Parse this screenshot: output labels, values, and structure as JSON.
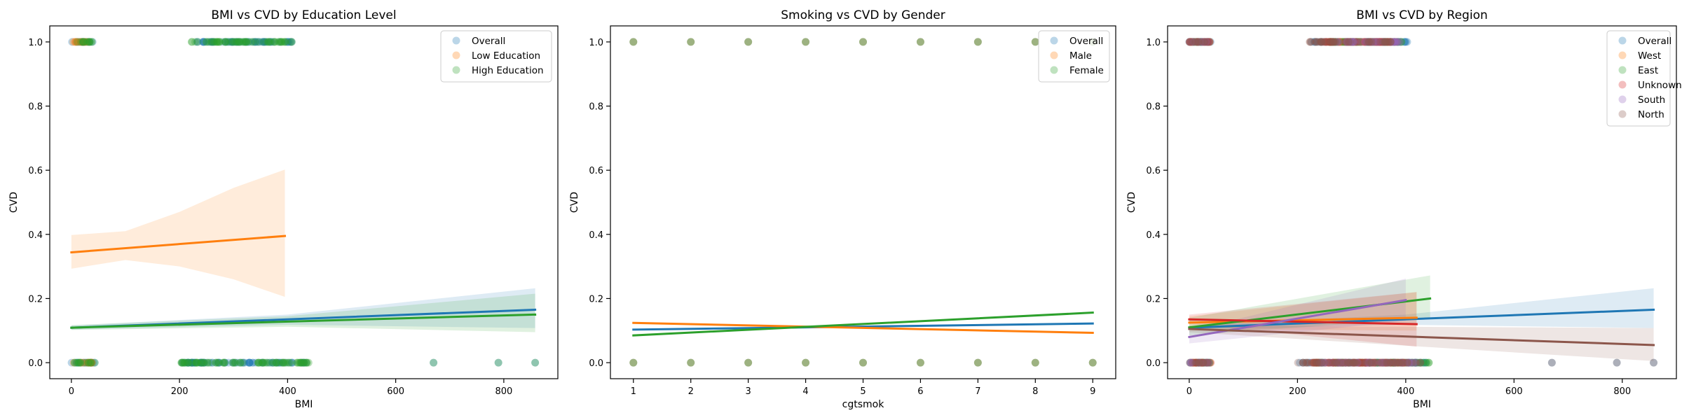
{
  "figure": {
    "background": "#ffffff"
  },
  "chart_data": [
    {
      "type": "scatter",
      "title": "BMI vs CVD by Education Level",
      "xlabel": "BMI",
      "ylabel": "CVD",
      "xlim": [
        -40,
        900
      ],
      "ylim": [
        -0.05,
        1.05
      ],
      "xticks": [
        0,
        200,
        400,
        600,
        800
      ],
      "yticks": [
        0.0,
        0.2,
        0.4,
        0.6,
        0.8,
        1.0
      ],
      "tick_labels_x": [
        "0",
        "200",
        "400",
        "600",
        "800"
      ],
      "tick_labels_y": [
        "0.0",
        "0.2",
        "0.4",
        "0.6",
        "0.8",
        "1.0"
      ],
      "grid": false,
      "legend_position": "top-right",
      "series": [
        {
          "name": "Overall",
          "color": "#1f77b4",
          "point_alpha": 0.3,
          "points_y1": [
            [
              0,
              40
            ],
            [
              230,
              410
            ]
          ],
          "points_y0": [
            [
              0,
              45
            ],
            [
              200,
              440
            ],
            [
              670
            ],
            [
              790
            ],
            [
              858
            ]
          ],
          "fit": {
            "x": [
              0,
              858
            ],
            "y": [
              0.109,
              0.165
            ]
          },
          "ci": {
            "x": [
              0,
              400,
              858
            ],
            "lower": [
              0.103,
              0.118,
              0.108
            ],
            "upper": [
              0.116,
              0.15,
              0.232
            ]
          }
        },
        {
          "name": "Low Education",
          "color": "#ff7f0e",
          "point_alpha": 0.3,
          "points_y1": [
            [
              0,
              38
            ]
          ],
          "points_y0": [
            [
              0,
              40
            ]
          ],
          "fit": {
            "x": [
              0,
              395
            ],
            "y": [
              0.344,
              0.395
            ]
          },
          "ci": {
            "x": [
              0,
              100,
              200,
              300,
              395
            ],
            "lower": [
              0.293,
              0.32,
              0.3,
              0.26,
              0.205
            ],
            "upper": [
              0.398,
              0.41,
              0.47,
              0.545,
              0.602
            ]
          }
        },
        {
          "name": "High Education",
          "color": "#2ca02c",
          "point_alpha": 0.3,
          "points_y1": [
            [
              0,
              40
            ],
            [
              220,
              410
            ]
          ],
          "points_y0": [
            [
              0,
              45
            ],
            [
              200,
              440
            ],
            [
              670
            ],
            [
              790
            ],
            [
              858
            ]
          ],
          "fit": {
            "x": [
              0,
              858
            ],
            "y": [
              0.109,
              0.15
            ]
          },
          "ci": {
            "x": [
              0,
              400,
              858
            ],
            "lower": [
              0.102,
              0.112,
              0.095
            ],
            "upper": [
              0.117,
              0.145,
              0.215
            ]
          }
        }
      ]
    },
    {
      "type": "scatter",
      "title": "Smoking vs CVD by Gender",
      "xlabel": "cgtsmok",
      "ylabel": "CVD",
      "xlim": [
        0.6,
        9.4
      ],
      "ylim": [
        -0.05,
        1.05
      ],
      "xticks": [
        1,
        2,
        3,
        4,
        5,
        6,
        7,
        8,
        9
      ],
      "yticks": [
        0.0,
        0.2,
        0.4,
        0.6,
        0.8,
        1.0
      ],
      "tick_labels_x": [
        "1",
        "2",
        "3",
        "4",
        "5",
        "6",
        "7",
        "8",
        "9"
      ],
      "tick_labels_y": [
        "0.0",
        "0.2",
        "0.4",
        "0.6",
        "0.8",
        "1.0"
      ],
      "grid": false,
      "legend_position": "top-right",
      "series": [
        {
          "name": "Overall",
          "color": "#1f77b4",
          "point_alpha": 0.3,
          "points_x": [
            1,
            2,
            3,
            4,
            5,
            6,
            7,
            8,
            9
          ],
          "fit": {
            "x": [
              1,
              9
            ],
            "y": [
              0.103,
              0.122
            ]
          }
        },
        {
          "name": "Male",
          "color": "#ff7f0e",
          "point_alpha": 0.3,
          "points_x": [
            1,
            2,
            3,
            4,
            5,
            6,
            7,
            8,
            9
          ],
          "fit": {
            "x": [
              1,
              9
            ],
            "y": [
              0.124,
              0.093
            ]
          }
        },
        {
          "name": "Female",
          "color": "#2ca02c",
          "point_alpha": 0.3,
          "points_x": [
            1,
            2,
            3,
            4,
            5,
            6,
            7,
            8,
            9
          ],
          "fit": {
            "x": [
              1,
              9
            ],
            "y": [
              0.085,
              0.156
            ]
          }
        }
      ]
    },
    {
      "type": "scatter",
      "title": "BMI vs CVD by Region",
      "xlabel": "BMI",
      "ylabel": "CVD",
      "xlim": [
        -40,
        900
      ],
      "ylim": [
        -0.05,
        1.05
      ],
      "xticks": [
        0,
        200,
        400,
        600,
        800
      ],
      "yticks": [
        0.0,
        0.2,
        0.4,
        0.6,
        0.8,
        1.0
      ],
      "tick_labels_x": [
        "0",
        "200",
        "400",
        "600",
        "800"
      ],
      "tick_labels_y": [
        "0.0",
        "0.2",
        "0.4",
        "0.6",
        "0.8",
        "1.0"
      ],
      "grid": false,
      "legend_position": "top-right",
      "series": [
        {
          "name": "Overall",
          "color": "#1f77b4",
          "point_alpha": 0.3,
          "points_y1": [
            [
              0,
              40
            ],
            [
              225,
              410
            ]
          ],
          "points_y0": [
            [
              0,
              45
            ],
            [
              195,
              440
            ],
            [
              670
            ],
            [
              790
            ],
            [
              858
            ]
          ],
          "fit": {
            "x": [
              0,
              858
            ],
            "y": [
              0.109,
              0.165
            ]
          },
          "ci": {
            "x": [
              0,
              400,
              858
            ],
            "lower": [
              0.103,
              0.118,
              0.108
            ],
            "upper": [
              0.116,
              0.15,
              0.232
            ]
          }
        },
        {
          "name": "West",
          "color": "#ff7f0e",
          "point_alpha": 0.3,
          "points_y1": [
            [
              0,
              38
            ],
            [
              250,
              380
            ]
          ],
          "points_y0": [
            [
              0,
              40
            ],
            [
              230,
              400
            ]
          ],
          "fit": {
            "x": [
              0,
              420
            ],
            "y": [
              0.125,
              0.14
            ]
          },
          "ci": {
            "x": [
              0,
              420
            ],
            "lower": [
              0.105,
              0.1
            ],
            "upper": [
              0.145,
              0.22
            ]
          }
        },
        {
          "name": "East",
          "color": "#2ca02c",
          "point_alpha": 0.3,
          "points_y1": [
            [
              0,
              38
            ],
            [
              260,
              395
            ]
          ],
          "points_y0": [
            [
              0,
              40
            ],
            [
              235,
              445
            ]
          ],
          "fit": {
            "x": [
              0,
              445
            ],
            "y": [
              0.11,
              0.2
            ]
          },
          "ci": {
            "x": [
              0,
              445
            ],
            "lower": [
              0.085,
              0.14
            ],
            "upper": [
              0.14,
              0.272
            ]
          }
        },
        {
          "name": "Unknown",
          "color": "#d62728",
          "point_alpha": 0.3,
          "points_y1": [
            [
              0,
              38
            ],
            [
              250,
              390
            ]
          ],
          "points_y0": [
            [
              0,
              40
            ],
            [
              225,
              400
            ]
          ],
          "fit": {
            "x": [
              0,
              420
            ],
            "y": [
              0.135,
              0.12
            ]
          },
          "ci": {
            "x": [
              0,
              420
            ],
            "lower": [
              0.12,
              0.05
            ],
            "upper": [
              0.15,
              0.22
            ]
          }
        },
        {
          "name": "South",
          "color": "#9467bd",
          "point_alpha": 0.3,
          "points_y1": [
            [
              0,
              38
            ],
            [
              270,
              390
            ]
          ],
          "points_y0": [
            [
              0,
              40
            ],
            [
              240,
              420
            ]
          ],
          "fit": {
            "x": [
              0,
              400
            ],
            "y": [
              0.08,
              0.195
            ]
          },
          "ci": {
            "x": [
              0,
              400
            ],
            "lower": [
              0.06,
              0.13
            ],
            "upper": [
              0.1,
              0.262
            ]
          }
        },
        {
          "name": "North",
          "color": "#8c564b",
          "point_alpha": 0.3,
          "points_y1": [
            [
              0,
              38
            ],
            [
              220,
              380
            ]
          ],
          "points_y0": [
            [
              0,
              40
            ],
            [
              200,
              430
            ],
            [
              670
            ],
            [
              790
            ],
            [
              858
            ]
          ],
          "fit": {
            "x": [
              0,
              858
            ],
            "y": [
              0.105,
              0.055
            ]
          },
          "ci": {
            "x": [
              0,
              858
            ],
            "lower": [
              0.095,
              0.005
            ],
            "upper": [
              0.115,
              0.108
            ]
          }
        }
      ]
    }
  ]
}
